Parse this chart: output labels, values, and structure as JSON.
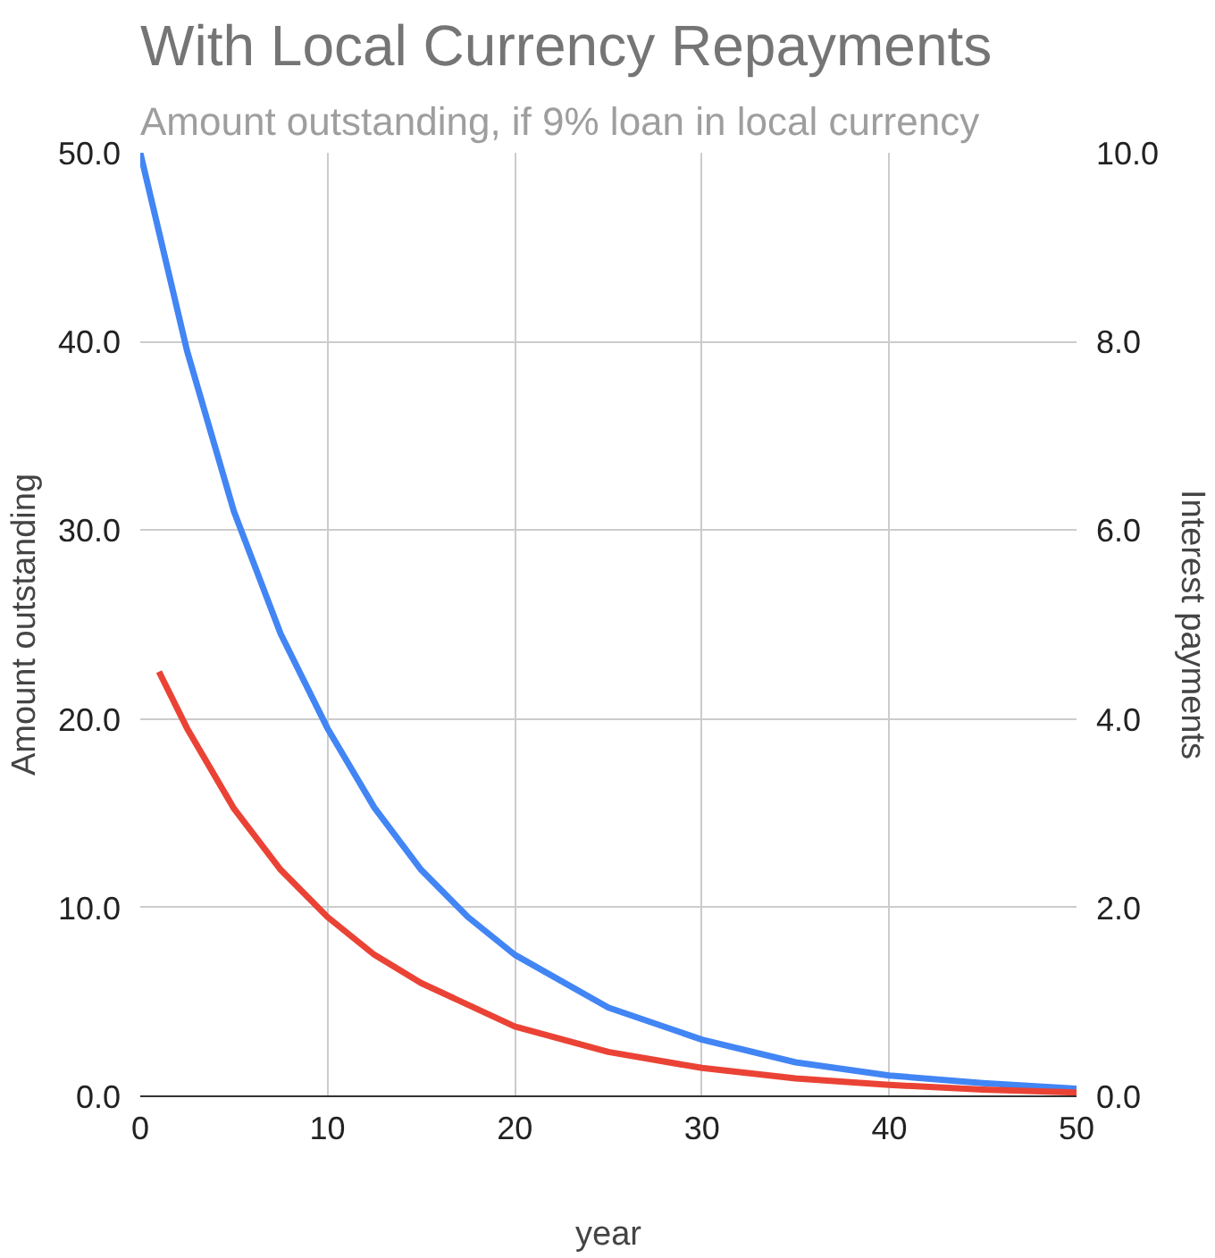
{
  "chart_data": {
    "type": "line",
    "title": "With Local Currency Repayments",
    "subtitle": "Amount outstanding, if 9% loan in local currency",
    "xlabel": "year",
    "ylabel": "Amount outstanding",
    "y2label": "Interest payments",
    "xlim": [
      0,
      50
    ],
    "xticks": [
      0,
      10,
      20,
      30,
      40,
      50
    ],
    "ylim": [
      0,
      50
    ],
    "yticks": [
      {
        "value": 0,
        "label": "0.0"
      },
      {
        "value": 10,
        "label": "10.0"
      },
      {
        "value": 20,
        "label": "20.0"
      },
      {
        "value": 30,
        "label": "30.0"
      },
      {
        "value": 40,
        "label": "40.0"
      },
      {
        "value": 50,
        "label": "50.0"
      }
    ],
    "y2lim": [
      0,
      10
    ],
    "y2ticks": [
      {
        "value": 0,
        "label": "0.0"
      },
      {
        "value": 2,
        "label": "2.0"
      },
      {
        "value": 4,
        "label": "4.0"
      },
      {
        "value": 6,
        "label": "6.0"
      },
      {
        "value": 8,
        "label": "8.0"
      },
      {
        "value": 10,
        "label": "10.0"
      }
    ],
    "grid": true,
    "marker": "none",
    "line_style": "solid",
    "series": [
      {
        "color": "#4285f4",
        "x": [
          0,
          2.5,
          5,
          7.5,
          10,
          12.5,
          15,
          17.5,
          20,
          25,
          30,
          35,
          40,
          45,
          50
        ],
        "values": [
          50,
          39.5,
          31,
          24.5,
          19.5,
          15.3,
          12,
          9.5,
          7.5,
          4.7,
          3,
          1.8,
          1.1,
          0.7,
          0.4
        ]
      },
      {
        "color": "#ea4335",
        "axis": "y2",
        "x": [
          1,
          2.5,
          5,
          7.5,
          10,
          12.5,
          15,
          20,
          25,
          30,
          35,
          40,
          45,
          50
        ],
        "values": [
          4.5,
          3.9,
          3.05,
          2.4,
          1.9,
          1.5,
          1.2,
          0.74,
          0.47,
          0.3,
          0.19,
          0.12,
          0.07,
          0.04
        ]
      }
    ]
  }
}
